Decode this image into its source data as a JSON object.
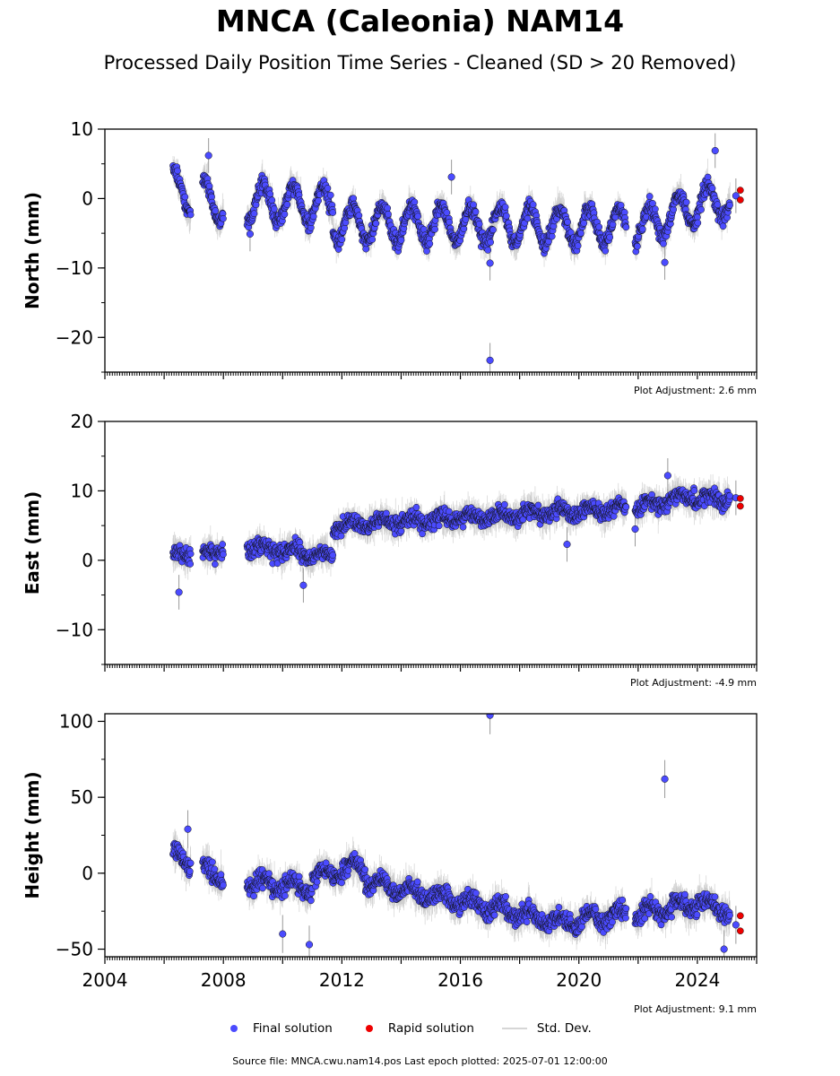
{
  "title": "MNCA (Caleonia) NAM14",
  "subtitle": "Processed Daily Position Time Series - Cleaned (SD > 20 Removed)",
  "footer": "Source file: MNCA.cwu.nam14.pos  Last epoch plotted: 2025-07-01 12:00:00",
  "legend": {
    "final": "Final solution",
    "rapid": "Rapid solution",
    "std": "Std. Dev."
  },
  "colors": {
    "final": "#4b4bff",
    "rapid": "#ee0000",
    "std": "#c8c8c8"
  },
  "chart_data": [
    {
      "type": "scatter",
      "ylabel": "North (mm)",
      "adjustment": "Plot Adjustment: 2.6 mm",
      "xlim": [
        2004,
        2026
      ],
      "ylim": [
        -25,
        10
      ],
      "yticks": [
        10,
        0,
        -10,
        -20
      ],
      "xticks": [],
      "segments": [
        {
          "x": [
            2006.3,
            2006.9
          ],
          "y": [
            1.5,
            0.5
          ]
        },
        {
          "x": [
            2007.3,
            2008.0
          ],
          "y": [
            0.5,
            -1.0
          ]
        },
        {
          "x": [
            2008.8,
            2011.7
          ],
          "y": [
            -0.5,
            -1.0
          ]
        },
        {
          "x": [
            2011.7,
            2021.6
          ],
          "y": [
            -3.5,
            -4.0
          ]
        },
        {
          "x": [
            2021.9,
            2023.9
          ],
          "y": [
            -4.5,
            -1.0
          ]
        },
        {
          "x": [
            2023.9,
            2025.1
          ],
          "y": [
            -1.0,
            0.0
          ]
        }
      ],
      "annual_amplitude": 2.6,
      "final_outliers": [
        {
          "x": 2017.0,
          "y": -23.3
        },
        {
          "x": 2017.0,
          "y": -9.3
        },
        {
          "x": 2024.6,
          "y": 6.9
        },
        {
          "x": 2022.9,
          "y": -9.2
        },
        {
          "x": 2007.5,
          "y": 6.2
        },
        {
          "x": 2015.7,
          "y": 3.1
        },
        {
          "x": 2008.9,
          "y": -5.1
        },
        {
          "x": 2025.3,
          "y": 0.4
        }
      ],
      "rapid": [
        {
          "x": 2025.45,
          "y": 1.2
        },
        {
          "x": 2025.45,
          "y": -0.2
        }
      ]
    },
    {
      "type": "scatter",
      "ylabel": "East (mm)",
      "adjustment": "Plot Adjustment: -4.9 mm",
      "xlim": [
        2004,
        2026
      ],
      "ylim": [
        -15,
        20
      ],
      "yticks": [
        20,
        10,
        0,
        -10
      ],
      "xticks": [],
      "segments": [
        {
          "x": [
            2006.3,
            2006.9
          ],
          "y": [
            0.5,
            1.5
          ]
        },
        {
          "x": [
            2007.3,
            2008.0
          ],
          "y": [
            0.5,
            2.0
          ]
        },
        {
          "x": [
            2008.8,
            2011.7
          ],
          "y": [
            2.0,
            0.5
          ]
        },
        {
          "x": [
            2011.7,
            2021.6
          ],
          "y": [
            5.0,
            7.5
          ]
        },
        {
          "x": [
            2021.9,
            2023.9
          ],
          "y": [
            7.5,
            9.5
          ]
        },
        {
          "x": [
            2023.9,
            2025.1
          ],
          "y": [
            8.5,
            9.0
          ]
        }
      ],
      "annual_amplitude": 0.6,
      "final_outliers": [
        {
          "x": 2006.5,
          "y": -4.6
        },
        {
          "x": 2010.7,
          "y": -3.6
        },
        {
          "x": 2019.6,
          "y": 2.3
        },
        {
          "x": 2021.9,
          "y": 4.5
        },
        {
          "x": 2023.0,
          "y": 12.2
        },
        {
          "x": 2025.3,
          "y": 9.0
        }
      ],
      "rapid": [
        {
          "x": 2025.45,
          "y": 8.9
        },
        {
          "x": 2025.45,
          "y": 7.8
        }
      ]
    },
    {
      "type": "scatter",
      "ylabel": "Height (mm)",
      "adjustment": "Plot Adjustment: 9.1 mm",
      "xlim": [
        2004,
        2026
      ],
      "ylim": [
        -55,
        105
      ],
      "yticks": [
        100,
        50,
        0,
        -50
      ],
      "xticks": [
        2004,
        2008,
        2012,
        2016,
        2020,
        2024
      ],
      "segments": [
        {
          "x": [
            2006.3,
            2006.9
          ],
          "y": [
            12,
            8
          ]
        },
        {
          "x": [
            2007.3,
            2008.0
          ],
          "y": [
            3,
            -2
          ]
        },
        {
          "x": [
            2008.8,
            2011.0
          ],
          "y": [
            -5,
            -10
          ]
        },
        {
          "x": [
            2011.0,
            2012.8
          ],
          "y": [
            -2,
            5
          ]
        },
        {
          "x": [
            2012.8,
            2019.3
          ],
          "y": [
            -5,
            -32
          ]
        },
        {
          "x": [
            2019.3,
            2021.6
          ],
          "y": [
            -32,
            -27
          ]
        },
        {
          "x": [
            2021.9,
            2023.9
          ],
          "y": [
            -27,
            -20
          ]
        },
        {
          "x": [
            2023.9,
            2025.1
          ],
          "y": [
            -18,
            -25
          ]
        }
      ],
      "annual_amplitude": 4.0,
      "final_outliers": [
        {
          "x": 2017.0,
          "y": 104.0
        },
        {
          "x": 2022.9,
          "y": 62.0
        },
        {
          "x": 2010.0,
          "y": -40.0
        },
        {
          "x": 2010.9,
          "y": -47.0
        },
        {
          "x": 2006.8,
          "y": 29.0
        },
        {
          "x": 2024.9,
          "y": -50.0
        },
        {
          "x": 2025.3,
          "y": -34.0
        }
      ],
      "rapid": [
        {
          "x": 2025.45,
          "y": -28.0
        },
        {
          "x": 2025.45,
          "y": -38.0
        }
      ]
    }
  ]
}
